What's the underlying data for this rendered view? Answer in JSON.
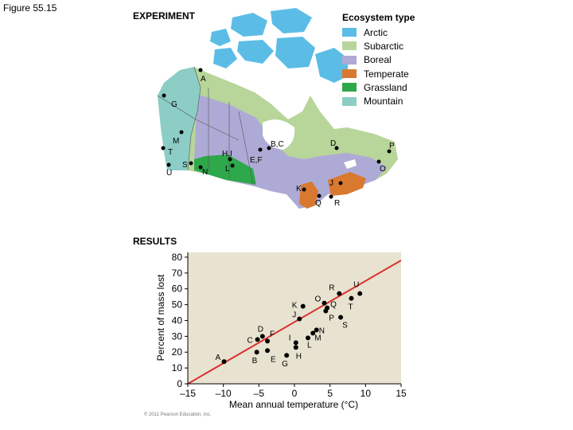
{
  "figure_label": "Figure 55.15",
  "experiment": {
    "title": "EXPERIMENT",
    "legend": {
      "title": "Ecosystem type",
      "items": [
        {
          "label": "Arctic",
          "color": "#5bbde6"
        },
        {
          "label": "Subarctic",
          "color": "#b8d59a"
        },
        {
          "label": "Boreal",
          "color": "#aeaad6"
        },
        {
          "label": "Temperate",
          "color": "#d9782f"
        },
        {
          "label": "Grassland",
          "color": "#2da84a"
        },
        {
          "label": "Mountain",
          "color": "#8ccdc6"
        }
      ]
    },
    "map_labels": [
      "A",
      "G",
      "M",
      "T",
      "S",
      "U",
      "N",
      "H,I",
      "L",
      "E,F",
      "B,C",
      "D",
      "P",
      "O",
      "J",
      "K",
      "Q",
      "R"
    ]
  },
  "results": {
    "title": "RESULTS"
  },
  "chart_data": {
    "type": "scatter",
    "xlabel": "Mean annual temperature (°C)",
    "ylabel": "Percent of mass lost",
    "xlim": [
      -15,
      15
    ],
    "ylim": [
      0,
      80
    ],
    "x_ticks": [
      -15,
      -10,
      -5,
      0,
      5,
      10,
      15
    ],
    "x_tick_labels": [
      "–15",
      "–10",
      "–5",
      "0",
      "5",
      "10",
      "15"
    ],
    "y_ticks": [
      0,
      10,
      20,
      30,
      40,
      50,
      60,
      70,
      80
    ],
    "grid": false,
    "points": [
      {
        "label": "A",
        "x": -9.9,
        "y": 14
      },
      {
        "label": "B",
        "x": -5.3,
        "y": 20
      },
      {
        "label": "C",
        "x": -5.2,
        "y": 28
      },
      {
        "label": "D",
        "x": -4.5,
        "y": 30
      },
      {
        "label": "E",
        "x": -3.8,
        "y": 21
      },
      {
        "label": "F",
        "x": -3.8,
        "y": 27
      },
      {
        "label": "G",
        "x": -1.1,
        "y": 18
      },
      {
        "label": "H",
        "x": 0.2,
        "y": 23
      },
      {
        "label": "I",
        "x": 0.2,
        "y": 26
      },
      {
        "label": "L",
        "x": 1.9,
        "y": 29
      },
      {
        "label": "M",
        "x": 2.6,
        "y": 32
      },
      {
        "label": "N",
        "x": 3.1,
        "y": 34
      },
      {
        "label": "J",
        "x": 0.7,
        "y": 41
      },
      {
        "label": "K",
        "x": 1.2,
        "y": 49
      },
      {
        "label": "O",
        "x": 4.2,
        "y": 51
      },
      {
        "label": "Q",
        "x": 4.6,
        "y": 48
      },
      {
        "label": "P",
        "x": 4.4,
        "y": 46
      },
      {
        "label": "R",
        "x": 6.3,
        "y": 57
      },
      {
        "label": "S",
        "x": 6.5,
        "y": 42
      },
      {
        "label": "T",
        "x": 8.0,
        "y": 54
      },
      {
        "label": "U",
        "x": 9.2,
        "y": 57
      }
    ],
    "trendline": {
      "x": [
        -15,
        15
      ],
      "y": [
        0,
        78
      ],
      "color": "#d8312f"
    },
    "point_color": "#000000"
  },
  "copyright": "© 2011 Pearson Education, Inc."
}
